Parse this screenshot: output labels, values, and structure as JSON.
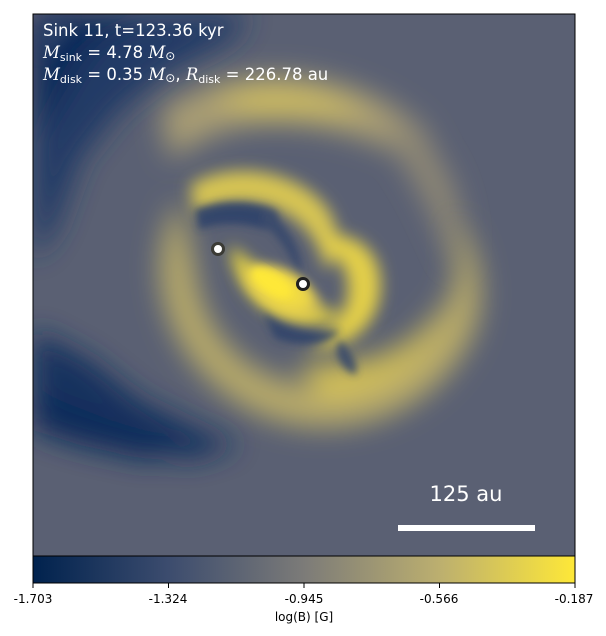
{
  "annotation": {
    "line1": "Sink 11, t=123.36 kyr",
    "sink_mass_symbol": "M",
    "sink_subscript": "sink",
    "sink_mass_value": " = 4.78 ",
    "disk_mass_symbol": "M",
    "disk_subscript": "disk",
    "disk_mass_value": " = 0.35 ",
    "disk_radius_symbol": "R",
    "disk_radius_subscript": "disk",
    "disk_radius_value": " = 226.78 au",
    "solar_unit_symbol": "M",
    "solar_subscript": "⊙"
  },
  "scale_bar": {
    "label": "125 au"
  },
  "colorbar": {
    "ticks": [
      "-1.703",
      "-1.324",
      "-0.945",
      "-0.566",
      "-0.187"
    ],
    "label": "log(B) [G]",
    "colormap": [
      "#00224e",
      "#575c6d",
      "#7c7b78",
      "#a59c74",
      "#fee838"
    ]
  },
  "sinks": [
    {
      "name": "sink-secondary"
    },
    {
      "name": "sink-primary"
    }
  ]
}
